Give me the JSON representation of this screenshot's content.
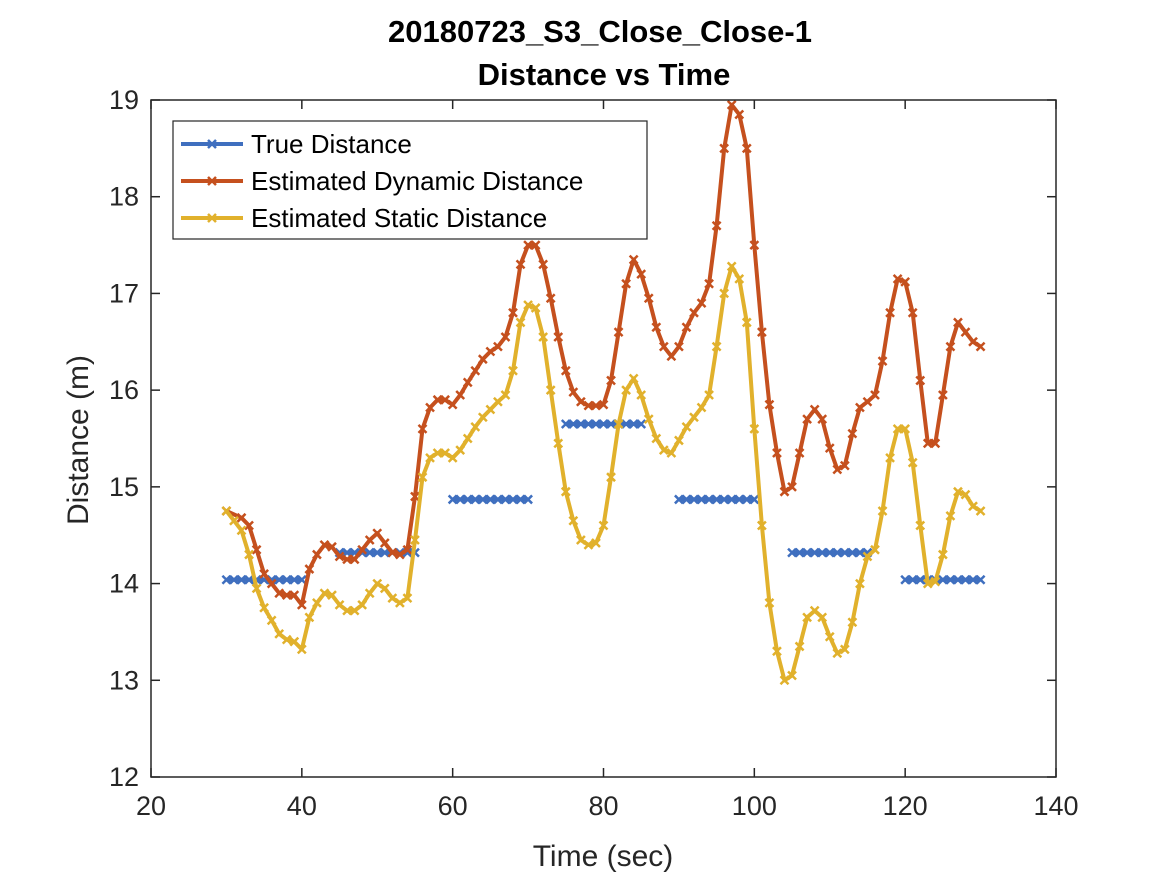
{
  "chart_data": {
    "type": "line",
    "title": "20180723_S3_Close_Close-1",
    "subtitle": "Distance vs Time",
    "xlabel": "Time (sec)",
    "ylabel": "Distance (m)",
    "xlim": [
      20,
      140
    ],
    "ylim": [
      12,
      19
    ],
    "xticks": [
      20,
      40,
      60,
      80,
      100,
      120,
      140
    ],
    "yticks": [
      12,
      13,
      14,
      15,
      16,
      17,
      18,
      19
    ],
    "grid": false,
    "legend_position": "top-left",
    "marker": "x",
    "series": [
      {
        "name": "True Distance",
        "color": "#3F6FBF",
        "points": [
          [
            30,
            14.04
          ],
          [
            31,
            14.04
          ],
          [
            32,
            14.04
          ],
          [
            33,
            14.04
          ],
          [
            34,
            14.04
          ],
          [
            35,
            14.04
          ],
          [
            36,
            14.04
          ],
          [
            37,
            14.04
          ],
          [
            38,
            14.04
          ],
          [
            39,
            14.04
          ],
          [
            40,
            14.04
          ],
          [
            45,
            14.32
          ],
          [
            46,
            14.32
          ],
          [
            47,
            14.32
          ],
          [
            48,
            14.32
          ],
          [
            49,
            14.32
          ],
          [
            50,
            14.32
          ],
          [
            51,
            14.32
          ],
          [
            52,
            14.32
          ],
          [
            53,
            14.32
          ],
          [
            54,
            14.32
          ],
          [
            55,
            14.32
          ],
          [
            60,
            14.87
          ],
          [
            61,
            14.87
          ],
          [
            62,
            14.87
          ],
          [
            63,
            14.87
          ],
          [
            64,
            14.87
          ],
          [
            65,
            14.87
          ],
          [
            66,
            14.87
          ],
          [
            67,
            14.87
          ],
          [
            68,
            14.87
          ],
          [
            69,
            14.87
          ],
          [
            70,
            14.87
          ],
          [
            75,
            15.65
          ],
          [
            76,
            15.65
          ],
          [
            77,
            15.65
          ],
          [
            78,
            15.65
          ],
          [
            79,
            15.65
          ],
          [
            80,
            15.65
          ],
          [
            81,
            15.65
          ],
          [
            82,
            15.65
          ],
          [
            83,
            15.65
          ],
          [
            84,
            15.65
          ],
          [
            85,
            15.65
          ],
          [
            90,
            14.87
          ],
          [
            91,
            14.87
          ],
          [
            92,
            14.87
          ],
          [
            93,
            14.87
          ],
          [
            94,
            14.87
          ],
          [
            95,
            14.87
          ],
          [
            96,
            14.87
          ],
          [
            97,
            14.87
          ],
          [
            98,
            14.87
          ],
          [
            99,
            14.87
          ],
          [
            100,
            14.87
          ],
          [
            105,
            14.32
          ],
          [
            106,
            14.32
          ],
          [
            107,
            14.32
          ],
          [
            108,
            14.32
          ],
          [
            109,
            14.32
          ],
          [
            110,
            14.32
          ],
          [
            111,
            14.32
          ],
          [
            112,
            14.32
          ],
          [
            113,
            14.32
          ],
          [
            114,
            14.32
          ],
          [
            115,
            14.32
          ],
          [
            120,
            14.04
          ],
          [
            121,
            14.04
          ],
          [
            122,
            14.04
          ],
          [
            123,
            14.04
          ],
          [
            124,
            14.04
          ],
          [
            125,
            14.04
          ],
          [
            126,
            14.04
          ],
          [
            127,
            14.04
          ],
          [
            128,
            14.04
          ],
          [
            129,
            14.04
          ],
          [
            130,
            14.04
          ]
        ]
      },
      {
        "name": "Estimated Dynamic Distance",
        "color": "#C5501E",
        "points": [
          [
            30,
            14.75
          ],
          [
            32,
            14.68
          ],
          [
            33,
            14.6
          ],
          [
            34,
            14.35
          ],
          [
            35,
            14.1
          ],
          [
            36,
            14.0
          ],
          [
            37,
            13.9
          ],
          [
            38,
            13.88
          ],
          [
            39,
            13.88
          ],
          [
            40,
            13.78
          ],
          [
            41,
            14.15
          ],
          [
            42,
            14.3
          ],
          [
            43,
            14.4
          ],
          [
            44,
            14.38
          ],
          [
            45,
            14.28
          ],
          [
            46,
            14.25
          ],
          [
            47,
            14.25
          ],
          [
            48,
            14.35
          ],
          [
            49,
            14.45
          ],
          [
            50,
            14.52
          ],
          [
            51,
            14.42
          ],
          [
            52,
            14.32
          ],
          [
            53,
            14.3
          ],
          [
            54,
            14.35
          ],
          [
            55,
            14.9
          ],
          [
            56,
            15.6
          ],
          [
            57,
            15.82
          ],
          [
            58,
            15.9
          ],
          [
            59,
            15.9
          ],
          [
            60,
            15.85
          ],
          [
            61,
            15.95
          ],
          [
            62,
            16.08
          ],
          [
            63,
            16.2
          ],
          [
            64,
            16.32
          ],
          [
            65,
            16.4
          ],
          [
            66,
            16.45
          ],
          [
            67,
            16.55
          ],
          [
            68,
            16.8
          ],
          [
            69,
            17.3
          ],
          [
            70,
            17.5
          ],
          [
            71,
            17.5
          ],
          [
            72,
            17.3
          ],
          [
            73,
            16.95
          ],
          [
            74,
            16.55
          ],
          [
            75,
            16.2
          ],
          [
            76,
            15.98
          ],
          [
            77,
            15.88
          ],
          [
            78,
            15.84
          ],
          [
            79,
            15.84
          ],
          [
            80,
            15.85
          ],
          [
            81,
            16.1
          ],
          [
            82,
            16.6
          ],
          [
            83,
            17.1
          ],
          [
            84,
            17.35
          ],
          [
            85,
            17.2
          ],
          [
            86,
            16.95
          ],
          [
            87,
            16.65
          ],
          [
            88,
            16.45
          ],
          [
            89,
            16.35
          ],
          [
            90,
            16.45
          ],
          [
            91,
            16.65
          ],
          [
            92,
            16.8
          ],
          [
            93,
            16.9
          ],
          [
            94,
            17.1
          ],
          [
            95,
            17.7
          ],
          [
            96,
            18.5
          ],
          [
            97,
            18.95
          ],
          [
            98,
            18.85
          ],
          [
            99,
            18.5
          ],
          [
            100,
            17.5
          ],
          [
            101,
            16.6
          ],
          [
            102,
            15.85
          ],
          [
            103,
            15.35
          ],
          [
            104,
            14.95
          ],
          [
            105,
            15.0
          ],
          [
            106,
            15.35
          ],
          [
            107,
            15.7
          ],
          [
            108,
            15.8
          ],
          [
            109,
            15.7
          ],
          [
            110,
            15.4
          ],
          [
            111,
            15.18
          ],
          [
            112,
            15.22
          ],
          [
            113,
            15.55
          ],
          [
            114,
            15.82
          ],
          [
            115,
            15.88
          ],
          [
            116,
            15.95
          ],
          [
            117,
            16.3
          ],
          [
            118,
            16.8
          ],
          [
            119,
            17.15
          ],
          [
            120,
            17.12
          ],
          [
            121,
            16.8
          ],
          [
            122,
            16.1
          ],
          [
            123,
            15.45
          ],
          [
            124,
            15.45
          ],
          [
            125,
            15.95
          ],
          [
            126,
            16.45
          ],
          [
            127,
            16.7
          ],
          [
            128,
            16.6
          ],
          [
            129,
            16.5
          ],
          [
            130,
            16.45
          ]
        ]
      },
      {
        "name": "Estimated Static Distance",
        "color": "#E1B12C",
        "points": [
          [
            30,
            14.75
          ],
          [
            31,
            14.65
          ],
          [
            32,
            14.55
          ],
          [
            33,
            14.3
          ],
          [
            34,
            13.95
          ],
          [
            35,
            13.75
          ],
          [
            36,
            13.62
          ],
          [
            37,
            13.48
          ],
          [
            38,
            13.42
          ],
          [
            39,
            13.4
          ],
          [
            40,
            13.32
          ],
          [
            41,
            13.65
          ],
          [
            42,
            13.8
          ],
          [
            43,
            13.9
          ],
          [
            44,
            13.88
          ],
          [
            45,
            13.78
          ],
          [
            46,
            13.72
          ],
          [
            47,
            13.72
          ],
          [
            48,
            13.78
          ],
          [
            49,
            13.9
          ],
          [
            50,
            14.0
          ],
          [
            51,
            13.95
          ],
          [
            52,
            13.85
          ],
          [
            53,
            13.8
          ],
          [
            54,
            13.85
          ],
          [
            55,
            14.45
          ],
          [
            56,
            15.1
          ],
          [
            57,
            15.3
          ],
          [
            58,
            15.35
          ],
          [
            59,
            15.35
          ],
          [
            60,
            15.3
          ],
          [
            61,
            15.38
          ],
          [
            62,
            15.5
          ],
          [
            63,
            15.62
          ],
          [
            64,
            15.72
          ],
          [
            65,
            15.8
          ],
          [
            66,
            15.88
          ],
          [
            67,
            15.95
          ],
          [
            68,
            16.2
          ],
          [
            69,
            16.7
          ],
          [
            70,
            16.88
          ],
          [
            71,
            16.85
          ],
          [
            72,
            16.55
          ],
          [
            73,
            16.0
          ],
          [
            74,
            15.45
          ],
          [
            75,
            14.95
          ],
          [
            76,
            14.65
          ],
          [
            77,
            14.45
          ],
          [
            78,
            14.4
          ],
          [
            79,
            14.42
          ],
          [
            80,
            14.6
          ],
          [
            81,
            15.1
          ],
          [
            82,
            15.65
          ],
          [
            83,
            16.0
          ],
          [
            84,
            16.12
          ],
          [
            85,
            15.95
          ],
          [
            86,
            15.7
          ],
          [
            87,
            15.5
          ],
          [
            88,
            15.38
          ],
          [
            89,
            15.35
          ],
          [
            90,
            15.48
          ],
          [
            91,
            15.62
          ],
          [
            92,
            15.72
          ],
          [
            93,
            15.82
          ],
          [
            94,
            15.95
          ],
          [
            95,
            16.45
          ],
          [
            96,
            17.0
          ],
          [
            97,
            17.28
          ],
          [
            98,
            17.15
          ],
          [
            99,
            16.7
          ],
          [
            100,
            15.6
          ],
          [
            101,
            14.6
          ],
          [
            102,
            13.8
          ],
          [
            103,
            13.3
          ],
          [
            104,
            13.0
          ],
          [
            105,
            13.05
          ],
          [
            106,
            13.35
          ],
          [
            107,
            13.65
          ],
          [
            108,
            13.72
          ],
          [
            109,
            13.65
          ],
          [
            110,
            13.45
          ],
          [
            111,
            13.28
          ],
          [
            112,
            13.32
          ],
          [
            113,
            13.6
          ],
          [
            114,
            14.0
          ],
          [
            115,
            14.28
          ],
          [
            116,
            14.35
          ],
          [
            117,
            14.75
          ],
          [
            118,
            15.3
          ],
          [
            119,
            15.6
          ],
          [
            120,
            15.6
          ],
          [
            121,
            15.25
          ],
          [
            122,
            14.6
          ],
          [
            123,
            14.0
          ],
          [
            124,
            14.02
          ],
          [
            125,
            14.3
          ],
          [
            126,
            14.7
          ],
          [
            127,
            14.95
          ],
          [
            128,
            14.92
          ],
          [
            129,
            14.8
          ],
          [
            130,
            14.75
          ]
        ]
      }
    ]
  }
}
